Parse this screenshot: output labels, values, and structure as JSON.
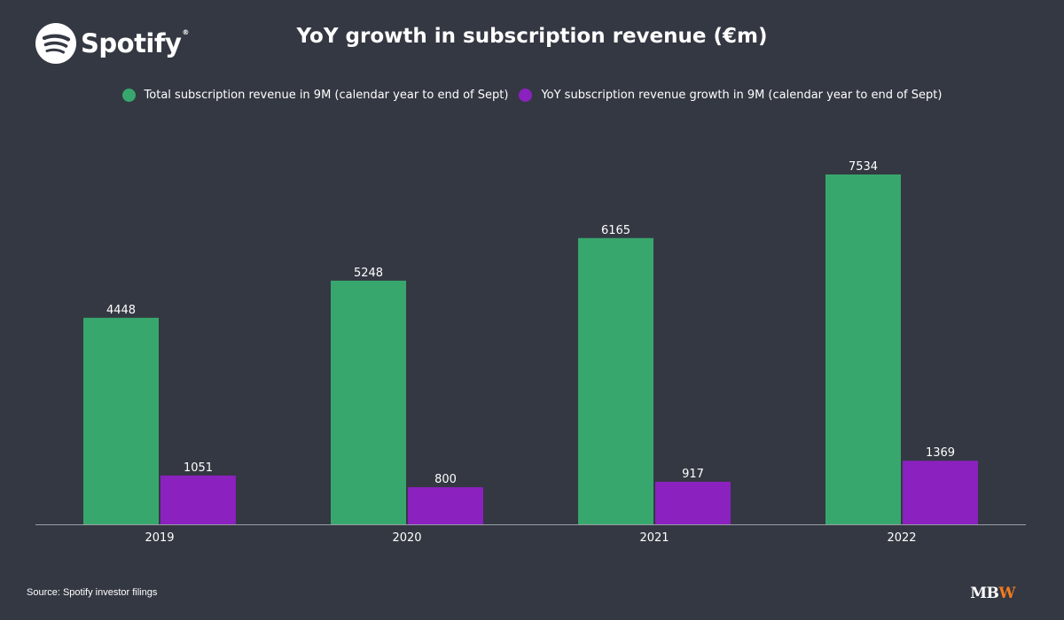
{
  "brand": {
    "logo_text": "Spotify",
    "logo_reg": "®",
    "logo_color": "#ffffff",
    "icon": "spotify-logo-icon"
  },
  "chart_data": {
    "type": "bar",
    "title": "YoY growth in subscription revenue (€m)",
    "categories": [
      "2019",
      "2020",
      "2021",
      "2022"
    ],
    "series": [
      {
        "name": "Total subscription revenue in 9M (calendar year to end of Sept)",
        "values": [
          4448,
          5248,
          6165,
          7534
        ],
        "color": "#38a76d"
      },
      {
        "name": "YoY subscription revenue growth in 9M (calendar year to end of Sept)",
        "values": [
          1051,
          800,
          917,
          1369
        ],
        "color": "#8b21bf"
      }
    ],
    "xlabel": "",
    "ylabel": "",
    "ylim": [
      0,
      8000
    ],
    "grid": false,
    "legend_position": "top-center",
    "data_labels": true
  },
  "footer": {
    "source": "Source: Spotify investor filings",
    "mark_mb": "MB",
    "mark_w": "W",
    "mark_accent": "#f07b1e"
  }
}
